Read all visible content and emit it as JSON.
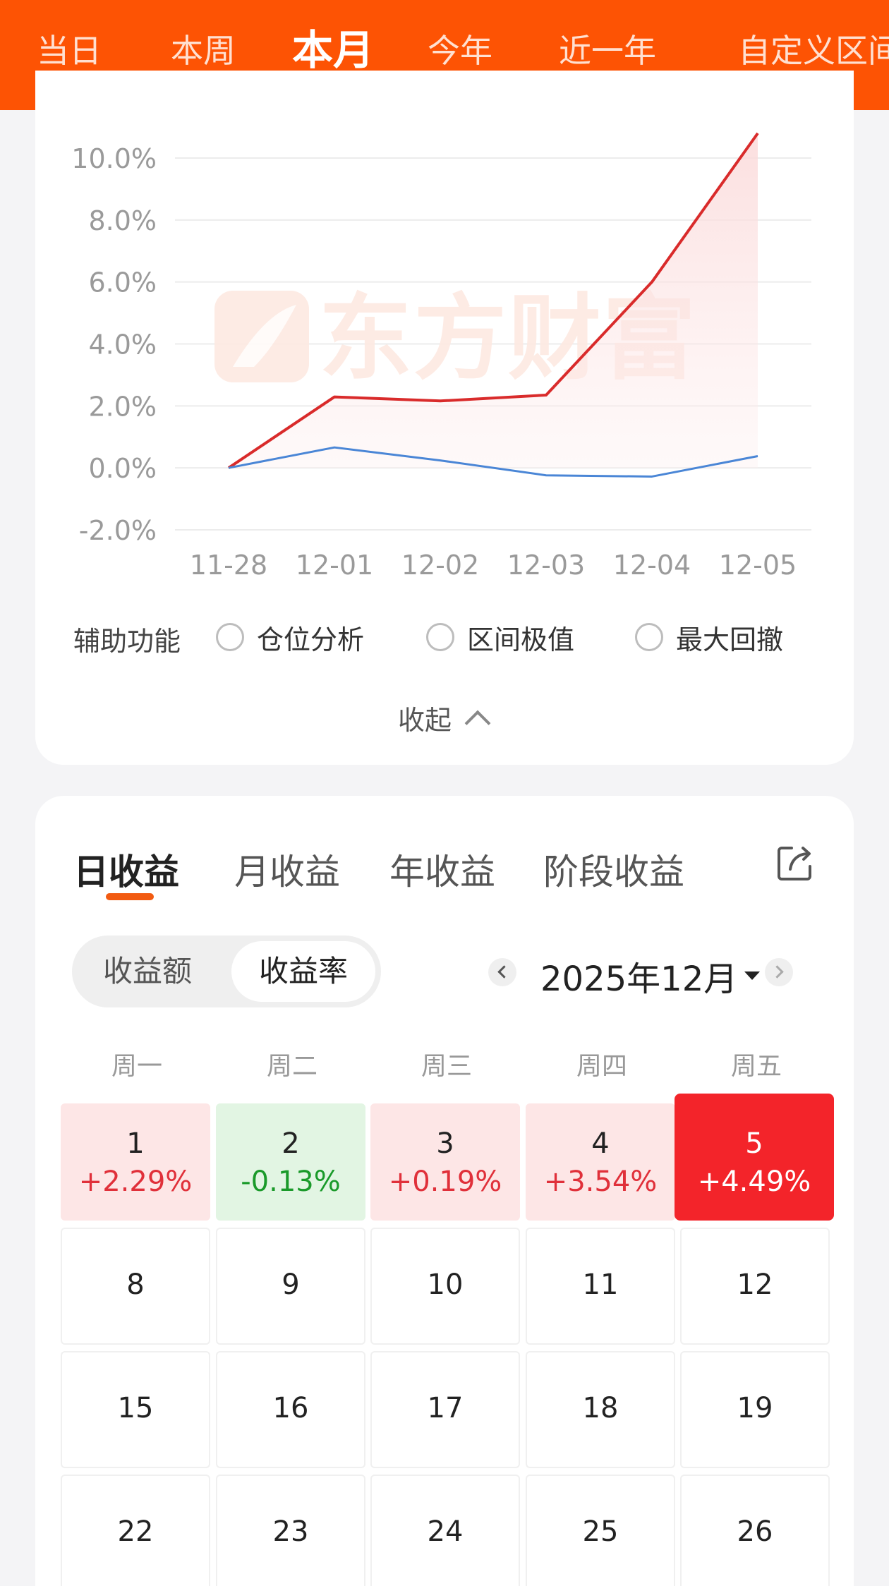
{
  "top_tabs": [
    "当日",
    "本周",
    "本月",
    "今年",
    "近一年",
    "自定义区间"
  ],
  "active_top_tab": "本月",
  "chart_data": {
    "type": "line",
    "categories": [
      "11-28",
      "12-01",
      "12-02",
      "12-03",
      "12-04",
      "12-05"
    ],
    "y_ticks": [
      "10.0%",
      "8.0%",
      "6.0%",
      "4.0%",
      "2.0%",
      "0.0%",
      "-2.0%"
    ],
    "ylim": [
      -2.0,
      10.0
    ],
    "y_unit": "%",
    "grid": true,
    "series": [
      {
        "color": "#d92b2b",
        "values": [
          0.0,
          2.29,
          2.16,
          2.35,
          6.0,
          10.8
        ],
        "area": true
      },
      {
        "color": "#4a86d6",
        "values": [
          0.0,
          0.66,
          0.24,
          -0.24,
          -0.28,
          0.38
        ]
      }
    ],
    "watermark": "东方财富"
  },
  "aux": {
    "label": "辅助功能",
    "options": [
      "仓位分析",
      "区间极值",
      "最大回撤"
    ]
  },
  "collapse_label": "收起",
  "return_tabs": [
    "日收益",
    "月收益",
    "年收益",
    "阶段收益"
  ],
  "active_return_tab": "日收益",
  "toggle": {
    "options": [
      "收益额",
      "收益率"
    ],
    "selected": "收益率"
  },
  "month_label": "2025年12月",
  "weekdays": [
    "周一",
    "周二",
    "周三",
    "周四",
    "周五"
  ],
  "calendar": [
    [
      {
        "day": "1",
        "value": "+2.29%",
        "state": "up"
      },
      {
        "day": "2",
        "value": "-0.13%",
        "state": "down"
      },
      {
        "day": "3",
        "value": "+0.19%",
        "state": "up"
      },
      {
        "day": "4",
        "value": "+3.54%",
        "state": "up"
      },
      {
        "day": "5",
        "value": "+4.49%",
        "state": "hot"
      }
    ],
    [
      {
        "day": "8"
      },
      {
        "day": "9"
      },
      {
        "day": "10"
      },
      {
        "day": "11"
      },
      {
        "day": "12"
      }
    ],
    [
      {
        "day": "15"
      },
      {
        "day": "16"
      },
      {
        "day": "17"
      },
      {
        "day": "18"
      },
      {
        "day": "19"
      }
    ],
    [
      {
        "day": "22"
      },
      {
        "day": "23"
      },
      {
        "day": "24"
      },
      {
        "day": "25"
      },
      {
        "day": "26"
      }
    ]
  ]
}
